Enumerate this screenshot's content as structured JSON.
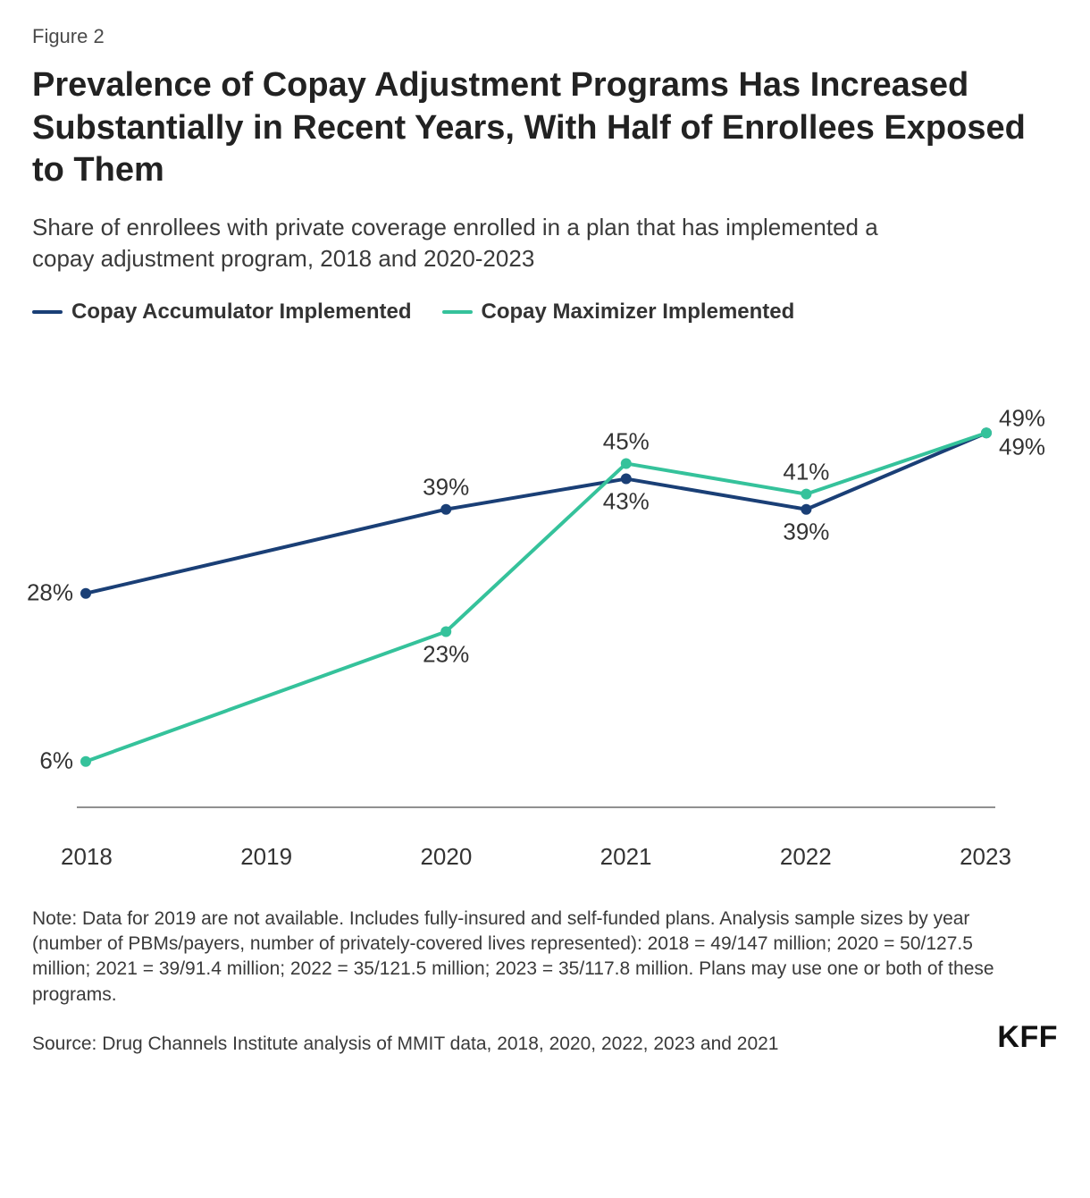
{
  "figure_label": "Figure 2",
  "title": "Prevalence of Copay Adjustment Programs Has Increased Substantially in Recent Years, With Half of Enrollees Exposed to Them",
  "subtitle": "Share of enrollees with private coverage enrolled in a plan that has implemented a copay adjustment program, 2018 and 2020-2023",
  "legend": {
    "series_a_label": "Copay Accumulator Implemented",
    "series_b_label": "Copay Maximizer Implemented"
  },
  "chart": {
    "type": "line",
    "background_color": "#ffffff",
    "axis_color": "#6b6b6b",
    "label_fontsize": 26,
    "axis_fontsize": 26,
    "line_width": 4,
    "marker_radius": 6,
    "ylim": [
      0,
      55
    ],
    "x_categories": [
      "2018",
      "2019",
      "2020",
      "2021",
      "2022",
      "2023"
    ],
    "series": [
      {
        "name": "Copay Accumulator Implemented",
        "color": "#1a3f76",
        "points": [
          {
            "x": "2018",
            "y": 28,
            "label": "28%",
            "label_side": "left"
          },
          {
            "x": "2020",
            "y": 39,
            "label": "39%",
            "label_side": "top"
          },
          {
            "x": "2021",
            "y": 43,
            "label": "43%",
            "label_side": "bottom"
          },
          {
            "x": "2022",
            "y": 39,
            "label": "39%",
            "label_side": "bottom"
          },
          {
            "x": "2023",
            "y": 49,
            "label": "49%",
            "label_side": "right-bottom"
          }
        ]
      },
      {
        "name": "Copay Maximizer Implemented",
        "color": "#35c29b",
        "points": [
          {
            "x": "2018",
            "y": 6,
            "label": "6%",
            "label_side": "left"
          },
          {
            "x": "2020",
            "y": 23,
            "label": "23%",
            "label_side": "bottom"
          },
          {
            "x": "2021",
            "y": 45,
            "label": "45%",
            "label_side": "top"
          },
          {
            "x": "2022",
            "y": 41,
            "label": "41%",
            "label_side": "top"
          },
          {
            "x": "2023",
            "y": 49,
            "label": "49%",
            "label_side": "right-top"
          }
        ]
      }
    ]
  },
  "note": "Note: Data for 2019 are not available. Includes fully-insured and self-funded plans. Analysis sample sizes by year (number of PBMs/payers, number of privately-covered lives represented): 2018 = 49/147 million; 2020 = 50/127.5 million; 2021 = 39/91.4 million; 2022 = 35/121.5 million; 2023 = 35/117.8 million. Plans may use one or both of these programs.",
  "source": "Source: Drug Channels Institute analysis of MMIT data, 2018, 2020, 2022, 2023 and 2021",
  "brand": "KFF"
}
